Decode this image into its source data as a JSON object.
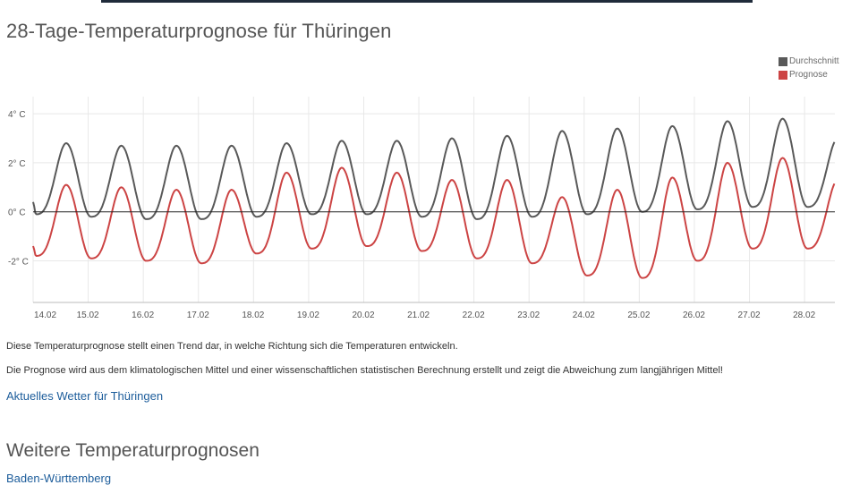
{
  "page": {
    "title": "28-Tage-Temperaturprognose für Thüringen",
    "description_1": "Diese Temperaturprognose stellt einen Trend dar, in welche Richtung sich die Temperaturen entwickeln.",
    "description_2": "Die Prognose wird aus dem klimatologischen Mittel und einer wissenschaftlichen statistischen Berechnung erstellt und zeigt die Abweichung zum langjährigen Mittel!",
    "current_weather_link": "Aktuelles Wetter für Thüringen",
    "more_forecasts_title": "Weitere Temperaturprognosen",
    "next_link_partial": "Baden-Württemberg"
  },
  "colors": {
    "durchschnitt": "#595959",
    "prognose": "#cc4444",
    "zero_line": "#222222",
    "grid": "#e8e8e8",
    "link": "#1d5d9b"
  },
  "chart_data": {
    "type": "line",
    "title": "",
    "x_unit": "day",
    "categories": [
      "14.02",
      "15.02",
      "16.02",
      "17.02",
      "18.02",
      "19.02",
      "20.02",
      "21.02",
      "22.02",
      "23.02",
      "24.02",
      "25.02",
      "26.02",
      "27.02",
      "28.02"
    ],
    "y_tick_labels": [
      "4° C",
      "2° C",
      "0° C",
      "-2° C"
    ],
    "y_ticks": [
      4,
      2,
      0,
      -2
    ],
    "ylim": [
      -3.7,
      4.7
    ],
    "xlim": [
      0,
      14.55
    ],
    "grid": true,
    "legend_position": "top-right",
    "series": [
      {
        "name": "Durchschnitt",
        "color": "#595959",
        "daily_max": [
          2.8,
          2.7,
          2.7,
          2.7,
          2.8,
          2.9,
          2.9,
          3.0,
          3.1,
          3.3,
          3.4,
          3.5,
          3.7,
          3.8,
          3.0
        ],
        "daily_min": [
          -0.1,
          -0.2,
          -0.3,
          -0.3,
          -0.2,
          -0.1,
          -0.1,
          -0.2,
          -0.3,
          -0.2,
          -0.1,
          0.0,
          0.1,
          0.2,
          0.2
        ],
        "start_value": 0.4
      },
      {
        "name": "Prognose",
        "color": "#cc4444",
        "daily_max": [
          1.1,
          1.0,
          0.9,
          0.9,
          1.6,
          1.8,
          1.6,
          1.3,
          1.3,
          0.6,
          0.9,
          1.4,
          2.0,
          2.2,
          1.3
        ],
        "daily_min": [
          -1.8,
          -1.9,
          -2.0,
          -2.1,
          -1.7,
          -1.5,
          -1.4,
          -1.6,
          -1.9,
          -2.1,
          -2.6,
          -2.7,
          -2.0,
          -1.5,
          -1.5
        ],
        "start_value": -1.4
      }
    ]
  }
}
